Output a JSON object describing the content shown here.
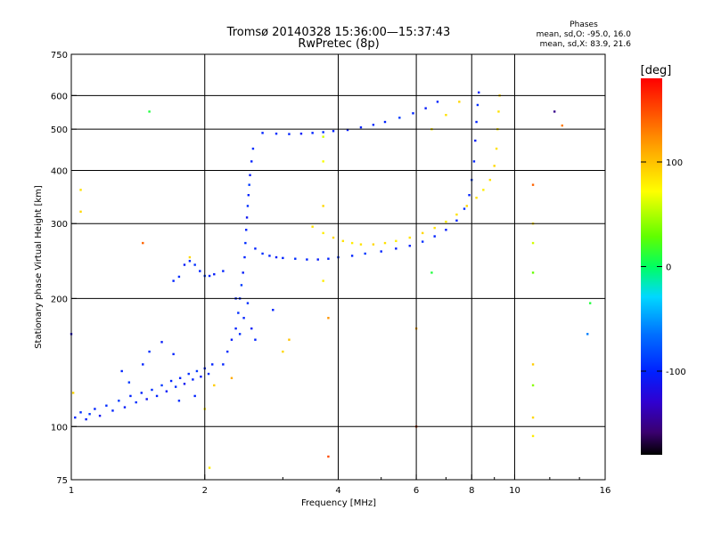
{
  "header": {
    "title_line1": "Tromsø 20140328 15:36:00—15:37:43",
    "title_line2": "RwPretec (8p)",
    "phases_title": "Phases",
    "phases_o": "mean, sd,O:  -95.0, 16.0",
    "phases_x": "mean, sd,X:   83.9, 21.6"
  },
  "colorbar": {
    "label": "[deg]",
    "ticks": [
      {
        "label": "100",
        "value": 100
      },
      {
        "label": "0",
        "value": 0
      },
      {
        "label": "-100",
        "value": -100
      }
    ],
    "range": [
      -180,
      180
    ]
  },
  "chart_data": {
    "type": "scatter",
    "xlabel": "Frequency [MHz]",
    "ylabel": "Stationary phase Virtual Height [km]",
    "x_scale": "log",
    "y_scale": "log",
    "xlim": [
      1,
      16
    ],
    "ylim": [
      75,
      750
    ],
    "x_ticks": [
      {
        "value": 1,
        "label": "1"
      },
      {
        "value": 2,
        "label": "2"
      },
      {
        "value": 4,
        "label": "4"
      },
      {
        "value": 6,
        "label": "6"
      },
      {
        "value": 8,
        "label": "8"
      },
      {
        "value": 10,
        "label": "10"
      },
      {
        "value": 16,
        "label": "16"
      }
    ],
    "y_ticks": [
      {
        "value": 75,
        "label": "75"
      },
      {
        "value": 100,
        "label": "100"
      },
      {
        "value": 200,
        "label": "200"
      },
      {
        "value": 300,
        "label": "300"
      },
      {
        "value": 400,
        "label": "400"
      },
      {
        "value": 500,
        "label": "500"
      },
      {
        "value": 600,
        "label": "600"
      },
      {
        "value": 750,
        "label": "750"
      }
    ],
    "x_grid": [
      2,
      4,
      6,
      8,
      10
    ],
    "y_grid": [
      100,
      200,
      300,
      400,
      500,
      600
    ],
    "series": [
      {
        "mode": "O",
        "trace": "E-layer and low heights",
        "points": [
          [
            1.02,
            105,
            -100
          ],
          [
            1.05,
            108,
            -95
          ],
          [
            1.08,
            104,
            -105
          ],
          [
            1.1,
            107,
            -90
          ],
          [
            1.13,
            110,
            -100
          ],
          [
            1.16,
            106,
            -110
          ],
          [
            1.2,
            112,
            -95
          ],
          [
            1.24,
            109,
            -100
          ],
          [
            1.28,
            115,
            -90
          ],
          [
            1.32,
            111,
            -105
          ],
          [
            1.36,
            118,
            -100
          ],
          [
            1.4,
            114,
            -95
          ],
          [
            1.44,
            120,
            -100
          ],
          [
            1.48,
            116,
            -110
          ],
          [
            1.52,
            122,
            -95
          ],
          [
            1.56,
            118,
            -100
          ],
          [
            1.6,
            125,
            -90
          ],
          [
            1.64,
            121,
            -105
          ],
          [
            1.68,
            128,
            -100
          ],
          [
            1.72,
            124,
            -95
          ],
          [
            1.76,
            130,
            -100
          ],
          [
            1.8,
            126,
            -110
          ],
          [
            1.84,
            133,
            -95
          ],
          [
            1.88,
            129,
            -100
          ],
          [
            1.92,
            135,
            -90
          ],
          [
            1.96,
            131,
            -105
          ],
          [
            2.0,
            137,
            -100
          ],
          [
            2.04,
            133,
            -95
          ],
          [
            2.08,
            140,
            -100
          ],
          [
            1.3,
            135,
            -100
          ],
          [
            1.5,
            150,
            -95
          ],
          [
            1.6,
            158,
            -105
          ],
          [
            1.7,
            148,
            -100
          ],
          [
            1.35,
            127,
            -90
          ],
          [
            1.45,
            140,
            -100
          ],
          [
            1.75,
            115,
            -95
          ],
          [
            1.9,
            118,
            -100
          ]
        ]
      },
      {
        "mode": "O",
        "trace": "cusp near 2.4 MHz",
        "points": [
          [
            2.2,
            140,
            -100
          ],
          [
            2.25,
            150,
            -95
          ],
          [
            2.3,
            160,
            -105
          ],
          [
            2.35,
            170,
            -100
          ],
          [
            2.38,
            185,
            -95
          ],
          [
            2.4,
            200,
            -100
          ],
          [
            2.42,
            215,
            -90
          ],
          [
            2.44,
            230,
            -105
          ],
          [
            2.46,
            250,
            -100
          ],
          [
            2.47,
            270,
            -95
          ],
          [
            2.48,
            290,
            -100
          ],
          [
            2.49,
            310,
            -110
          ],
          [
            2.5,
            330,
            -95
          ],
          [
            2.51,
            350,
            -100
          ],
          [
            2.52,
            370,
            -90
          ],
          [
            2.53,
            390,
            -105
          ],
          [
            2.55,
            420,
            -100
          ],
          [
            2.57,
            450,
            -95
          ],
          [
            2.45,
            180,
            -100
          ],
          [
            2.5,
            195,
            -95
          ],
          [
            2.55,
            170,
            -105
          ],
          [
            2.6,
            160,
            -100
          ],
          [
            2.35,
            200,
            -100
          ],
          [
            2.4,
            165,
            -95
          ]
        ]
      },
      {
        "mode": "O",
        "trace": "F-layer O trace",
        "points": [
          [
            1.7,
            220,
            -100
          ],
          [
            1.75,
            225,
            -95
          ],
          [
            1.8,
            240,
            -105
          ],
          [
            1.85,
            245,
            -100
          ],
          [
            1.9,
            240,
            -95
          ],
          [
            1.95,
            232,
            -100
          ],
          [
            2.0,
            226,
            -90
          ],
          [
            2.05,
            226,
            -100
          ],
          [
            2.1,
            228,
            -105
          ],
          [
            2.2,
            232,
            -100
          ],
          [
            2.6,
            262,
            -100
          ],
          [
            2.7,
            255,
            -95
          ],
          [
            2.8,
            252,
            -100
          ],
          [
            2.9,
            250,
            -105
          ],
          [
            3.0,
            249,
            -100
          ],
          [
            3.2,
            248,
            -95
          ],
          [
            3.4,
            247,
            -100
          ],
          [
            3.6,
            247,
            -105
          ],
          [
            3.8,
            248,
            -100
          ],
          [
            4.0,
            250,
            -95
          ],
          [
            4.3,
            252,
            -100
          ],
          [
            4.6,
            255,
            -90
          ],
          [
            5.0,
            258,
            -100
          ],
          [
            5.4,
            262,
            -105
          ],
          [
            5.8,
            266,
            -100
          ],
          [
            6.2,
            272,
            -95
          ],
          [
            6.6,
            280,
            -100
          ],
          [
            7.0,
            290,
            -105
          ],
          [
            7.4,
            305,
            -100
          ],
          [
            7.7,
            325,
            -95
          ],
          [
            7.9,
            350,
            -100
          ],
          [
            8.0,
            380,
            -90
          ],
          [
            8.1,
            420,
            -100
          ],
          [
            8.15,
            470,
            -105
          ],
          [
            8.2,
            520,
            -100
          ],
          [
            8.25,
            570,
            -95
          ],
          [
            8.3,
            610,
            -100
          ]
        ]
      },
      {
        "mode": "O",
        "trace": "multihop near 500 km",
        "points": [
          [
            2.7,
            490,
            -100
          ],
          [
            2.9,
            488,
            -95
          ],
          [
            3.1,
            487,
            -100
          ],
          [
            3.3,
            488,
            -105
          ],
          [
            3.5,
            490,
            -100
          ],
          [
            3.7,
            492,
            -95
          ],
          [
            3.9,
            495,
            -100
          ],
          [
            4.2,
            498,
            -105
          ],
          [
            4.5,
            505,
            -100
          ],
          [
            4.8,
            512,
            -95
          ],
          [
            5.1,
            520,
            -100
          ],
          [
            5.5,
            532,
            -90
          ],
          [
            5.9,
            545,
            -100
          ],
          [
            6.3,
            560,
            -105
          ],
          [
            6.7,
            580,
            -100
          ]
        ]
      },
      {
        "mode": "X",
        "trace": "F-layer X trace",
        "points": [
          [
            3.5,
            295,
            85
          ],
          [
            3.7,
            285,
            80
          ],
          [
            3.9,
            278,
            90
          ],
          [
            4.1,
            273,
            85
          ],
          [
            4.3,
            270,
            80
          ],
          [
            4.5,
            268,
            85
          ],
          [
            4.8,
            268,
            90
          ],
          [
            5.1,
            270,
            85
          ],
          [
            5.4,
            273,
            80
          ],
          [
            5.8,
            278,
            85
          ],
          [
            6.2,
            285,
            90
          ],
          [
            6.6,
            293,
            85
          ],
          [
            7.0,
            303,
            80
          ],
          [
            7.4,
            315,
            85
          ],
          [
            7.8,
            330,
            90
          ],
          [
            8.2,
            345,
            85
          ],
          [
            8.5,
            360,
            80
          ],
          [
            8.8,
            380,
            85
          ],
          [
            9.0,
            410,
            90
          ],
          [
            9.1,
            450,
            85
          ],
          [
            9.15,
            500,
            80
          ],
          [
            9.2,
            550,
            85
          ],
          [
            9.25,
            600,
            90
          ],
          [
            6.5,
            500,
            80
          ],
          [
            7.0,
            540,
            85
          ],
          [
            7.5,
            580,
            90
          ]
        ]
      },
      {
        "mode": "X",
        "trace": "scattered points",
        "points": [
          [
            3.7,
            420,
            70
          ],
          [
            3.7,
            480,
            60
          ],
          [
            3.7,
            330,
            90
          ],
          [
            3.7,
            220,
            80
          ],
          [
            3.8,
            180,
            120
          ],
          [
            3.8,
            85,
            150
          ],
          [
            6.0,
            170,
            110
          ],
          [
            6.0,
            100,
            150
          ],
          [
            6.5,
            230,
            10
          ],
          [
            11.0,
            370,
            140
          ],
          [
            11.0,
            300,
            85
          ],
          [
            11.0,
            270,
            60
          ],
          [
            11.0,
            230,
            30
          ],
          [
            11.0,
            140,
            95
          ],
          [
            11.0,
            125,
            40
          ],
          [
            11.0,
            105,
            90
          ],
          [
            11.0,
            95,
            80
          ],
          [
            12.8,
            510,
            130
          ],
          [
            12.3,
            550,
            -150
          ],
          [
            14.6,
            165,
            -60
          ],
          [
            14.8,
            195,
            10
          ],
          [
            1.0,
            165,
            -120
          ],
          [
            1.01,
            120,
            90
          ],
          [
            1.45,
            270,
            140
          ],
          [
            1.5,
            550,
            10
          ],
          [
            1.85,
            250,
            90
          ],
          [
            2.0,
            110,
            80
          ],
          [
            2.1,
            125,
            95
          ],
          [
            2.3,
            130,
            110
          ],
          [
            3.0,
            150,
            90
          ],
          [
            3.1,
            160,
            100
          ],
          [
            1.05,
            360,
            85
          ],
          [
            1.05,
            320,
            90
          ],
          [
            2.05,
            80,
            80
          ],
          [
            2.85,
            188,
            -100
          ]
        ]
      }
    ]
  }
}
